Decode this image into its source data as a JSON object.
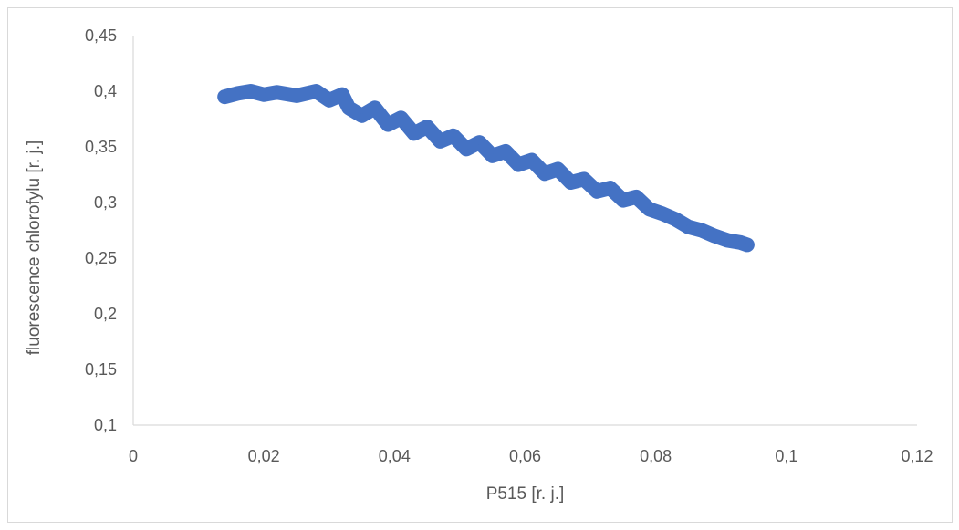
{
  "chart_data": {
    "type": "line",
    "title": "",
    "xlabel": "P515 [r. j.]",
    "ylabel": "fluorescence chlorofylu [r. j.]",
    "xlim": [
      0,
      0.12
    ],
    "ylim": [
      0.1,
      0.45
    ],
    "x_ticks": [
      "0",
      "0,02",
      "0,04",
      "0,06",
      "0,08",
      "0,1",
      "0,12"
    ],
    "y_ticks": [
      "0,1",
      "0,15",
      "0,2",
      "0,25",
      "0,3",
      "0,35",
      "0,4",
      "0,45"
    ],
    "grid": false,
    "legend": "none",
    "series": [
      {
        "color": "#4472C4",
        "points": [
          [
            0.014,
            0.395
          ],
          [
            0.016,
            0.398
          ],
          [
            0.018,
            0.4
          ],
          [
            0.02,
            0.397
          ],
          [
            0.022,
            0.399
          ],
          [
            0.025,
            0.396
          ],
          [
            0.028,
            0.4
          ],
          [
            0.03,
            0.392
          ],
          [
            0.032,
            0.397
          ],
          [
            0.033,
            0.385
          ],
          [
            0.035,
            0.378
          ],
          [
            0.037,
            0.385
          ],
          [
            0.039,
            0.37
          ],
          [
            0.041,
            0.376
          ],
          [
            0.043,
            0.362
          ],
          [
            0.045,
            0.368
          ],
          [
            0.047,
            0.355
          ],
          [
            0.049,
            0.36
          ],
          [
            0.051,
            0.348
          ],
          [
            0.053,
            0.354
          ],
          [
            0.055,
            0.342
          ],
          [
            0.057,
            0.346
          ],
          [
            0.059,
            0.334
          ],
          [
            0.061,
            0.338
          ],
          [
            0.063,
            0.326
          ],
          [
            0.065,
            0.33
          ],
          [
            0.067,
            0.318
          ],
          [
            0.069,
            0.321
          ],
          [
            0.071,
            0.31
          ],
          [
            0.073,
            0.313
          ],
          [
            0.075,
            0.302
          ],
          [
            0.077,
            0.305
          ],
          [
            0.079,
            0.294
          ],
          [
            0.081,
            0.29
          ],
          [
            0.083,
            0.285
          ],
          [
            0.085,
            0.278
          ],
          [
            0.087,
            0.275
          ],
          [
            0.089,
            0.27
          ],
          [
            0.091,
            0.266
          ],
          [
            0.093,
            0.264
          ],
          [
            0.094,
            0.262
          ]
        ]
      }
    ]
  }
}
